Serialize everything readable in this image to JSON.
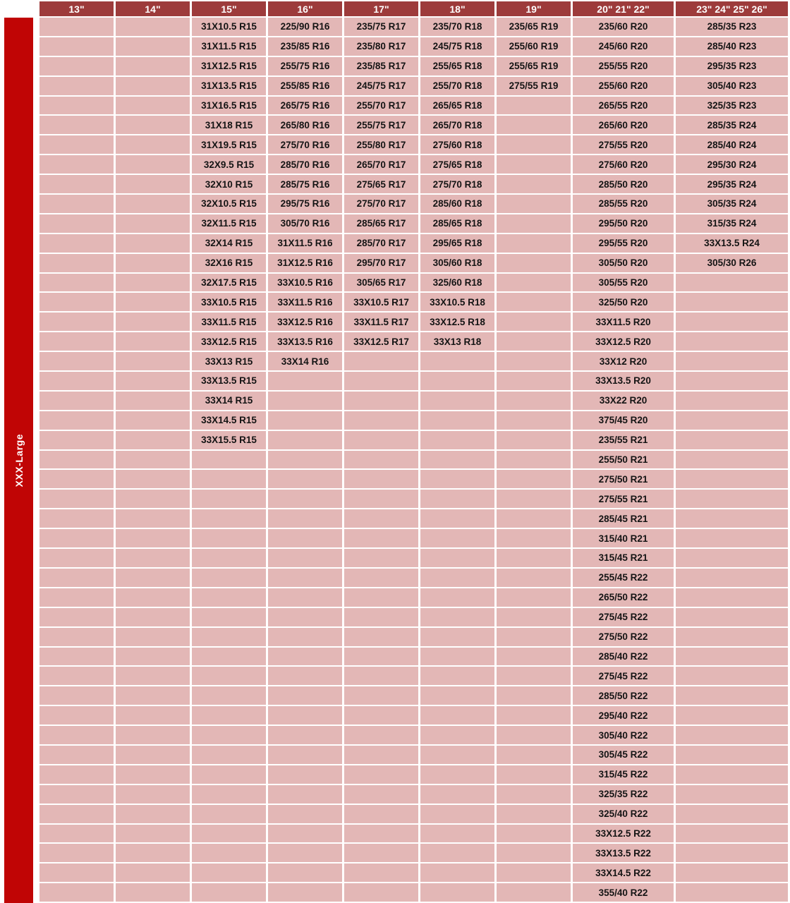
{
  "category_label": "XXX-Large",
  "colors": {
    "header_bg": "#9D3B3B",
    "cell_bg": "#E3B7B6",
    "category_bar_bg": "#C00505",
    "header_text": "#FFFFFF",
    "cell_text": "#141414",
    "gridline": "#FFFFFF"
  },
  "chart_data": {
    "type": "table",
    "row_category": "XXX-Large",
    "row_count": 45,
    "columns": [
      {
        "header": "13\"",
        "values": []
      },
      {
        "header": "14\"",
        "values": []
      },
      {
        "header": "15\"",
        "values": [
          "31X10.5 R15",
          "31X11.5 R15",
          "31X12.5 R15",
          "31X13.5 R15",
          "31X16.5 R15",
          "31X18 R15",
          "31X19.5 R15",
          "32X9.5 R15",
          "32X10 R15",
          "32X10.5 R15",
          "32X11.5 R15",
          "32X14 R15",
          "32X16 R15",
          "32X17.5 R15",
          "33X10.5 R15",
          "33X11.5 R15",
          "33X12.5 R15",
          "33X13 R15",
          "33X13.5 R15",
          "33X14 R15",
          "33X14.5 R15",
          "33X15.5 R15"
        ]
      },
      {
        "header": "16\"",
        "values": [
          "225/90 R16",
          "235/85 R16",
          "255/75 R16",
          "255/85 R16",
          "265/75 R16",
          "265/80 R16",
          "275/70 R16",
          "285/70 R16",
          "285/75 R16",
          "295/75 R16",
          "305/70 R16",
          "31X11.5 R16",
          "31X12.5 R16",
          "33X10.5 R16",
          "33X11.5 R16",
          "33X12.5 R16",
          "33X13.5 R16",
          "33X14 R16"
        ]
      },
      {
        "header": "17\"",
        "values": [
          "235/75 R17",
          "235/80 R17",
          "235/85 R17",
          "245/75 R17",
          "255/70 R17",
          "255/75 R17",
          "255/80 R17",
          "265/70 R17",
          "275/65 R17",
          "275/70 R17",
          "285/65 R17",
          "285/70 R17",
          "295/70 R17",
          "305/65 R17",
          "33X10.5 R17",
          "33X11.5 R17",
          "33X12.5 R17"
        ]
      },
      {
        "header": "18\"",
        "values": [
          "235/70 R18",
          "245/75 R18",
          "255/65 R18",
          "255/70 R18",
          "265/65 R18",
          "265/70 R18",
          "275/60 R18",
          "275/65 R18",
          "275/70 R18",
          "285/60 R18",
          "285/65 R18",
          "295/65 R18",
          "305/60 R18",
          "325/60 R18",
          "33X10.5 R18",
          "33X12.5 R18",
          "33X13 R18"
        ]
      },
      {
        "header": "19\"",
        "values": [
          "235/65 R19",
          "255/60 R19",
          "255/65 R19",
          "275/55 R19"
        ]
      },
      {
        "header": "20\" 21\" 22\"",
        "values": [
          "235/60 R20",
          "245/60 R20",
          "255/55 R20",
          "255/60 R20",
          "265/55 R20",
          "265/60 R20",
          "275/55 R20",
          "275/60 R20",
          "285/50 R20",
          "285/55 R20",
          "295/50 R20",
          "295/55 R20",
          "305/50 R20",
          "305/55 R20",
          "325/50 R20",
          "33X11.5 R20",
          "33X12.5 R20",
          "33X12 R20",
          "33X13.5 R20",
          "33X22 R20",
          "375/45 R20",
          "235/55 R21",
          "255/50 R21",
          "275/50 R21",
          "275/55 R21",
          "285/45 R21",
          "315/40 R21",
          "315/45 R21",
          "255/45 R22",
          "265/50 R22",
          "275/45 R22",
          "275/50 R22",
          "285/40 R22",
          "275/45 R22",
          "285/50 R22",
          "295/40 R22",
          "305/40 R22",
          "305/45 R22",
          "315/45 R22",
          "325/35 R22",
          "325/40 R22",
          "33X12.5 R22",
          "33X13.5 R22",
          "33X14.5 R22",
          "355/40 R22"
        ]
      },
      {
        "header": "23\" 24\" 25\" 26\"",
        "values": [
          "285/35 R23",
          "285/40 R23",
          "295/35 R23",
          "305/40 R23",
          "325/35 R23",
          "285/35 R24",
          "285/40 R24",
          "295/30 R24",
          "295/35 R24",
          "305/35 R24",
          "315/35 R24",
          "33X13.5 R24",
          "305/30 R26"
        ]
      }
    ]
  }
}
